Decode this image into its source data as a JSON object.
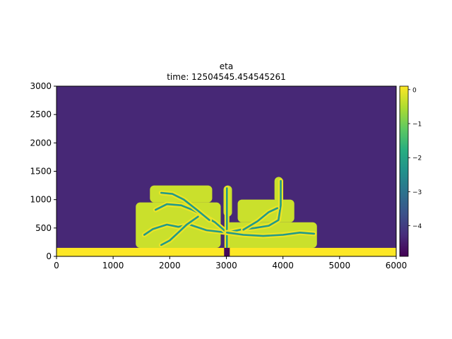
{
  "chart_data": {
    "type": "heatmap",
    "title": "eta",
    "subtitle": "time: 12504545.454545261",
    "xlabel": "",
    "ylabel": "",
    "xlim": [
      0,
      6000
    ],
    "ylim": [
      0,
      3000
    ],
    "x_ticks": [
      "0",
      "1000",
      "2000",
      "3000",
      "4000",
      "5000",
      "6000"
    ],
    "y_ticks": [
      "0",
      "500",
      "1000",
      "1500",
      "2000",
      "2500",
      "3000"
    ],
    "colormap": "viridis",
    "colorbar": {
      "range": [
        -4.9,
        0.1
      ],
      "ticks": [
        "0",
        "−1",
        "−2",
        "−3",
        "−4"
      ],
      "tick_values": [
        0,
        -1,
        -2,
        -3,
        -4
      ]
    },
    "field": {
      "background_value": -4.35,
      "shelf": {
        "y_top": 150,
        "value": 0.1
      },
      "channel": {
        "x": [
          2960,
          3060
        ],
        "y_top": 150,
        "value": -4.8
      },
      "levee_value": -0.3,
      "channel_value": -2.2,
      "deposit_lobes": [
        {
          "x": [
            1400,
            2900
          ],
          "y": [
            150,
            950
          ]
        },
        {
          "x": [
            1650,
            2750
          ],
          "y": [
            950,
            1250
          ]
        },
        {
          "x": [
            2950,
            3100
          ],
          "y": [
            700,
            1250
          ]
        },
        {
          "x": [
            3000,
            4600
          ],
          "y": [
            150,
            600
          ]
        },
        {
          "x": [
            3200,
            4200
          ],
          "y": [
            600,
            1000
          ]
        },
        {
          "x": [
            3850,
            4000
          ],
          "y": [
            950,
            1400
          ]
        }
      ],
      "channel_paths": [
        [
          [
            3010,
            150
          ],
          [
            3010,
            420
          ],
          [
            2650,
            460
          ],
          [
            2350,
            560
          ],
          [
            2150,
            520
          ],
          [
            1950,
            560
          ],
          [
            1700,
            480
          ],
          [
            1550,
            380
          ]
        ],
        [
          [
            3010,
            420
          ],
          [
            2800,
            600
          ],
          [
            2600,
            720
          ],
          [
            2400,
            820
          ],
          [
            2200,
            900
          ],
          [
            1950,
            920
          ],
          [
            1750,
            820
          ]
        ],
        [
          [
            2500,
            700
          ],
          [
            2300,
            560
          ],
          [
            2150,
            420
          ],
          [
            2000,
            280
          ],
          [
            1850,
            200
          ]
        ],
        [
          [
            2700,
            640
          ],
          [
            2480,
            820
          ],
          [
            2250,
            1000
          ],
          [
            2050,
            1100
          ],
          [
            1850,
            1120
          ]
        ],
        [
          [
            3010,
            420
          ],
          [
            3010,
            700
          ],
          [
            3010,
            1000
          ],
          [
            3010,
            1200
          ]
        ],
        [
          [
            3010,
            420
          ],
          [
            3250,
            470
          ],
          [
            3500,
            500
          ],
          [
            3750,
            540
          ],
          [
            3920,
            640
          ],
          [
            3960,
            900
          ],
          [
            3960,
            1330
          ]
        ],
        [
          [
            3010,
            420
          ],
          [
            3300,
            380
          ],
          [
            3650,
            360
          ],
          [
            4000,
            380
          ],
          [
            4300,
            420
          ],
          [
            4550,
            400
          ]
        ],
        [
          [
            3300,
            470
          ],
          [
            3550,
            620
          ],
          [
            3750,
            780
          ],
          [
            3900,
            850
          ]
        ]
      ]
    }
  }
}
